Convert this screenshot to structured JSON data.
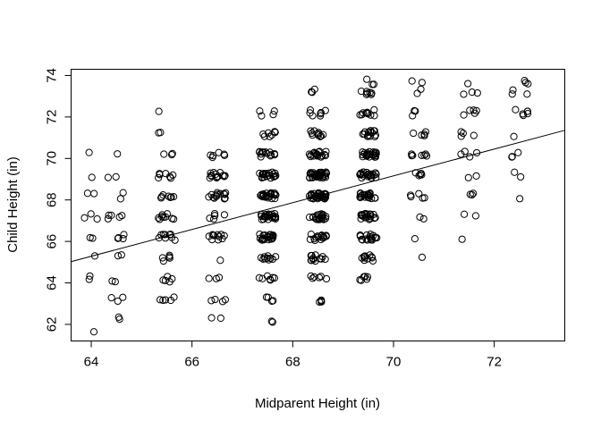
{
  "chart_data": {
    "type": "scatter",
    "title": "",
    "xlabel": "Midparent Height (in)",
    "ylabel": "Child Height (in)",
    "xlim": [
      63.6,
      73.4
    ],
    "ylim": [
      61.2,
      74.3
    ],
    "xticks": [
      64,
      66,
      68,
      70,
      72
    ],
    "yticks": [
      62,
      64,
      66,
      68,
      70,
      72,
      74
    ],
    "grid": false,
    "legend": "none",
    "marker": "open-circle",
    "regression_line": {
      "intercept": 23.94,
      "slope": 0.646
    },
    "x_clusters": [
      64.0,
      64.5,
      65.5,
      66.5,
      67.5,
      68.5,
      69.5,
      70.5,
      71.5,
      72.5
    ],
    "y_levels": [
      61.7,
      62.2,
      63.2,
      64.2,
      65.2,
      66.2,
      67.2,
      68.2,
      69.2,
      70.2,
      71.2,
      72.2,
      73.2,
      73.7
    ],
    "counts": [
      [
        1,
        0,
        0,
        0,
        0,
        0,
        0,
        0,
        0,
        0
      ],
      [
        0,
        2,
        0,
        2,
        2,
        0,
        0,
        0,
        0,
        0
      ],
      [
        0,
        3,
        5,
        4,
        4,
        4,
        0,
        0,
        0,
        0
      ],
      [
        2,
        2,
        5,
        3,
        7,
        6,
        6,
        0,
        0,
        0
      ],
      [
        1,
        2,
        5,
        1,
        10,
        12,
        10,
        1,
        0,
        0
      ],
      [
        2,
        4,
        9,
        11,
        23,
        16,
        17,
        1,
        1,
        0
      ],
      [
        3,
        5,
        9,
        5,
        24,
        21,
        19,
        2,
        2,
        0
      ],
      [
        2,
        2,
        7,
        14,
        24,
        34,
        22,
        5,
        3,
        1
      ],
      [
        1,
        2,
        7,
        13,
        22,
        34,
        24,
        5,
        2,
        2
      ],
      [
        1,
        1,
        3,
        6,
        13,
        18,
        22,
        7,
        4,
        3
      ],
      [
        0,
        0,
        2,
        0,
        7,
        10,
        14,
        5,
        4,
        1
      ],
      [
        0,
        0,
        1,
        0,
        4,
        7,
        10,
        3,
        5,
        6
      ],
      [
        0,
        0,
        0,
        0,
        0,
        3,
        7,
        2,
        3,
        3
      ],
      [
        0,
        0,
        0,
        0,
        0,
        0,
        3,
        2,
        1,
        3
      ]
    ]
  }
}
